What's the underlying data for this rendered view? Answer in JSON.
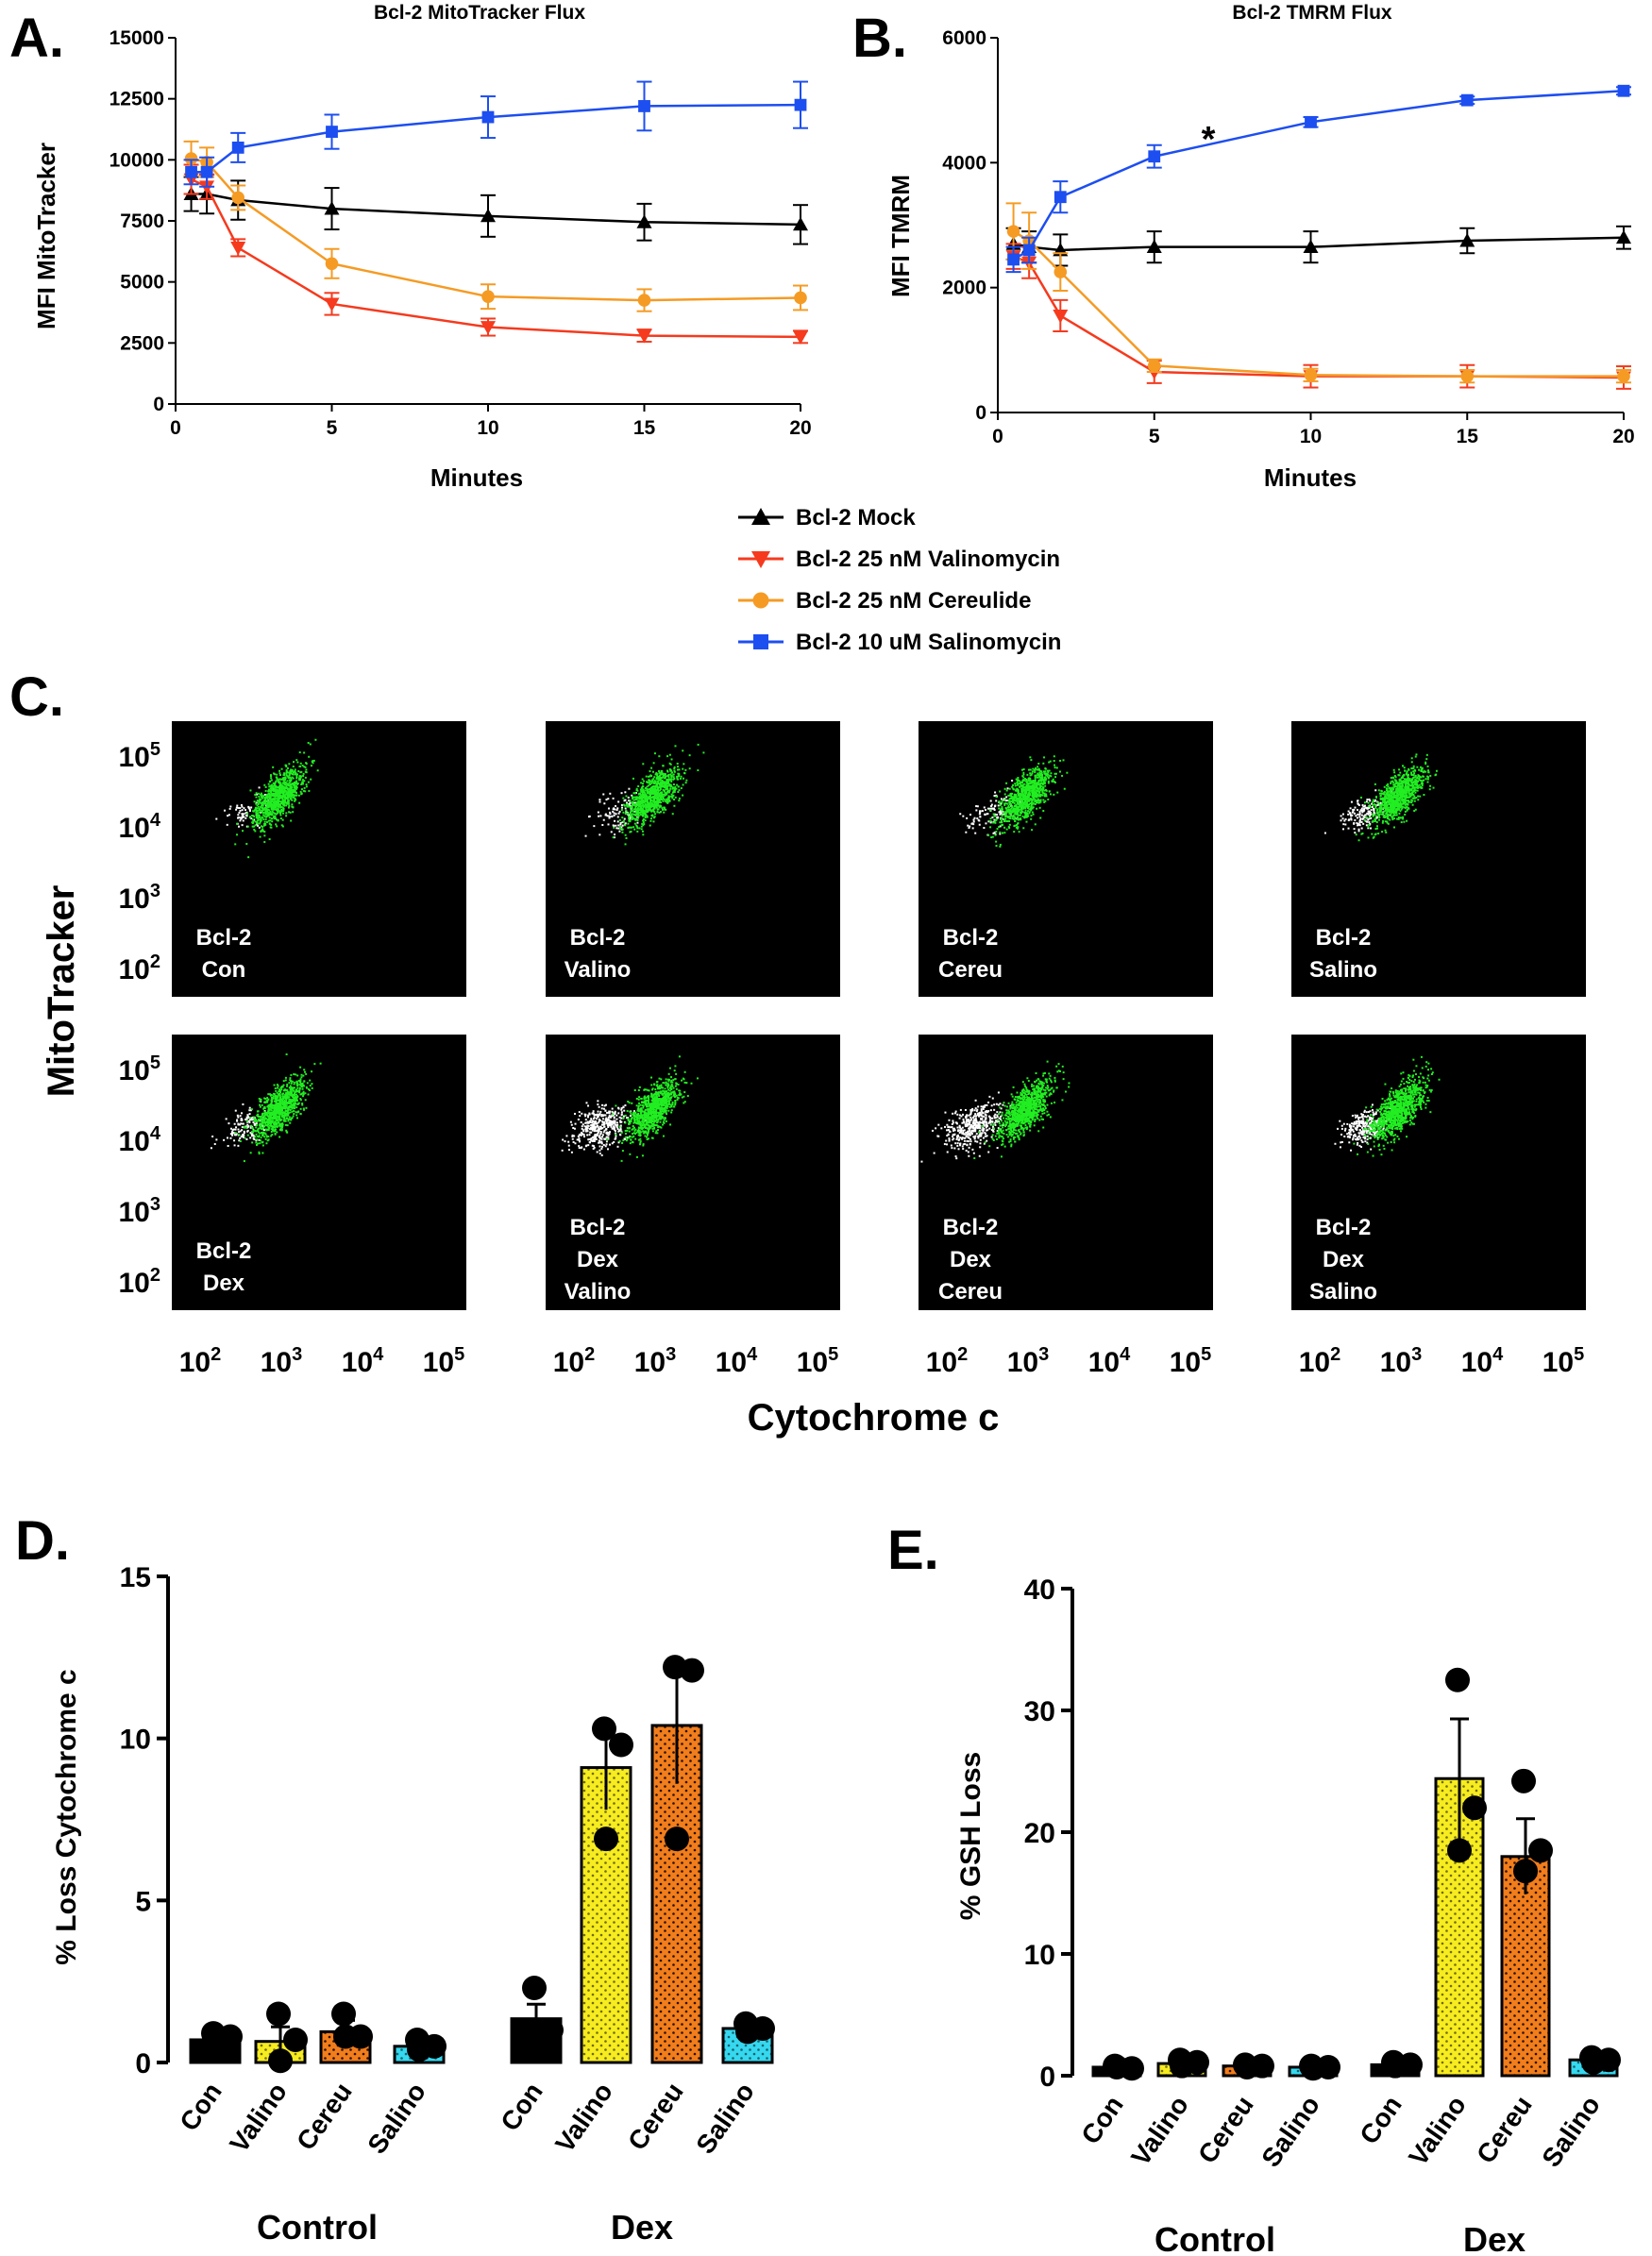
{
  "colors": {
    "mock": "#000000",
    "valinomycin": "#f53a1e",
    "cereulide": "#f59b24",
    "salinomycin": "#1d4ef0",
    "con_bar": "#000000",
    "valino_bar": "#f7ec20",
    "cereu_bar": "#f27d1c",
    "salino_bar": "#35d8ef",
    "flow_green": "#22ee22",
    "flow_white": "#ffffff"
  },
  "panel_labels": {
    "a": "A.",
    "b": "B.",
    "c": "C.",
    "d": "D.",
    "e": "E."
  },
  "legend": {
    "items": [
      {
        "label": "Bcl-2 Mock",
        "key": "mock",
        "marker": "triangle-up"
      },
      {
        "label": "Bcl-2 25 nM Valinomycin",
        "key": "valinomycin",
        "marker": "triangle-down"
      },
      {
        "label": "Bcl-2 25 nM Cereulide",
        "key": "cereulide",
        "marker": "circle"
      },
      {
        "label": "Bcl-2 10 uM Salinomycin",
        "key": "salinomycin",
        "marker": "square"
      }
    ]
  },
  "flow": {
    "ylabel": "MitoTracker",
    "xlabel": "Cytochrome c",
    "y_ticks": [
      {
        "base": "10",
        "exp": "5"
      },
      {
        "base": "10",
        "exp": "4"
      },
      {
        "base": "10",
        "exp": "3"
      },
      {
        "base": "10",
        "exp": "2"
      }
    ],
    "x_ticks": [
      {
        "base": "10",
        "exp": "2"
      },
      {
        "base": "10",
        "exp": "3"
      },
      {
        "base": "10",
        "exp": "4"
      },
      {
        "base": "10",
        "exp": "5"
      }
    ],
    "panels": [
      {
        "lines": [
          "Bcl-2",
          "Con"
        ],
        "white": 70,
        "spread": 0.8
      },
      {
        "lines": [
          "Bcl-2",
          "Valino"
        ],
        "white": 110,
        "spread": 0.9
      },
      {
        "lines": [
          "Bcl-2",
          "Cereu"
        ],
        "white": 110,
        "spread": 0.9
      },
      {
        "lines": [
          "Bcl-2",
          "Salino"
        ],
        "white": 160,
        "spread": 0.8
      },
      {
        "lines": [
          "Bcl-2",
          "Dex"
        ],
        "white": 140,
        "spread": 0.8
      },
      {
        "lines": [
          "Bcl-2",
          "Dex",
          "Valino"
        ],
        "white": 420,
        "spread": 1.0
      },
      {
        "lines": [
          "Bcl-2",
          "Dex",
          "Cereu"
        ],
        "white": 420,
        "spread": 1.0
      },
      {
        "lines": [
          "Bcl-2",
          "Dex",
          "Salino"
        ],
        "white": 260,
        "spread": 0.8
      }
    ]
  },
  "chart_data": [
    {
      "id": "A",
      "type": "line",
      "title": "Bcl-2 MitoTracker Flux",
      "xlabel": "Minutes",
      "ylabel": "MFI MitoTracker",
      "x_ticks": [
        0,
        5,
        10,
        15,
        20
      ],
      "y_ticks": [
        0,
        2500,
        5000,
        7500,
        10000,
        12500,
        15000
      ],
      "xlim": [
        0,
        20
      ],
      "ylim": [
        0,
        15000
      ],
      "x": [
        0.5,
        1,
        2,
        5,
        10,
        15,
        20
      ],
      "series": [
        {
          "name": "Bcl-2 Mock",
          "key": "mock",
          "marker": "triangle-up",
          "values": [
            8600,
            8600,
            8350,
            8000,
            7700,
            7450,
            7350
          ],
          "errors": [
            700,
            800,
            800,
            850,
            850,
            750,
            800
          ]
        },
        {
          "name": "Bcl-2 25 nM Valinomycin",
          "key": "valinomycin",
          "marker": "triangle-down",
          "values": [
            9200,
            8900,
            6400,
            4100,
            3150,
            2800,
            2750
          ],
          "errors": [
            600,
            500,
            350,
            450,
            350,
            250,
            250
          ]
        },
        {
          "name": "Bcl-2 25 nM Cereulide",
          "key": "cereulide",
          "marker": "circle",
          "values": [
            10050,
            9900,
            8450,
            5750,
            4400,
            4250,
            4350
          ],
          "errors": [
            700,
            600,
            500,
            600,
            500,
            450,
            500
          ]
        },
        {
          "name": "Bcl-2 10 uM Salinomycin",
          "key": "salinomycin",
          "marker": "square",
          "values": [
            9500,
            9500,
            10500,
            11150,
            11750,
            12200,
            12250
          ],
          "errors": [
            500,
            600,
            600,
            700,
            850,
            1000,
            950
          ]
        }
      ]
    },
    {
      "id": "B",
      "type": "line",
      "title": "Bcl-2 TMRM Flux",
      "xlabel": "Minutes",
      "ylabel": "MFI TMRM",
      "annotation": "*",
      "x_ticks": [
        0,
        5,
        10,
        15,
        20
      ],
      "y_ticks": [
        0,
        2000,
        4000,
        6000
      ],
      "xlim": [
        0,
        20
      ],
      "ylim": [
        0,
        6000
      ],
      "x": [
        0.5,
        1,
        2,
        5,
        10,
        15,
        20
      ],
      "series": [
        {
          "name": "Bcl-2 Mock",
          "key": "mock",
          "marker": "triangle-up",
          "values": [
            2700,
            2650,
            2600,
            2650,
            2650,
            2750,
            2800
          ],
          "errors": [
            250,
            250,
            250,
            250,
            250,
            200,
            180
          ]
        },
        {
          "name": "Bcl-2 25 nM Valinomycin",
          "key": "valinomycin",
          "marker": "triangle-down",
          "values": [
            2500,
            2400,
            1550,
            650,
            580,
            580,
            560
          ],
          "errors": [
            200,
            250,
            250,
            180,
            180,
            180,
            180
          ]
        },
        {
          "name": "Bcl-2 25 nM Cereulide",
          "key": "cereulide",
          "marker": "circle",
          "values": [
            2900,
            2750,
            2250,
            750,
            600,
            580,
            580
          ],
          "errors": [
            450,
            450,
            300,
            100,
            100,
            100,
            100
          ]
        },
        {
          "name": "Bcl-2 10 uM Salinomycin",
          "key": "salinomycin",
          "marker": "square",
          "values": [
            2450,
            2600,
            3450,
            4100,
            4650,
            5000,
            5150
          ],
          "errors": [
            200,
            200,
            250,
            180,
            80,
            60,
            60
          ]
        }
      ]
    },
    {
      "id": "D",
      "type": "bar",
      "ylabel": "% Loss Cytochrome c",
      "ylim": [
        0,
        15
      ],
      "y_ticks": [
        0,
        5,
        10,
        15
      ],
      "groups": [
        {
          "name": "Control",
          "bars": [
            {
              "label": "Con",
              "key": "con_bar",
              "value": 0.7,
              "error": 0.15,
              "points": [
                0.9,
                0.8,
                0.5
              ]
            },
            {
              "label": "Valino",
              "key": "valino_bar",
              "value": 0.65,
              "error": 0.45,
              "points": [
                1.5,
                0.7,
                0.05
              ]
            },
            {
              "label": "Cereu",
              "key": "cereu_bar",
              "value": 0.95,
              "error": 0.35,
              "points": [
                1.5,
                0.8,
                0.8
              ]
            },
            {
              "label": "Salino",
              "key": "salino_bar",
              "value": 0.5,
              "error": 0.1,
              "points": [
                0.7,
                0.5,
                0.4
              ]
            }
          ]
        },
        {
          "name": "Dex",
          "bars": [
            {
              "label": "Con",
              "key": "con_bar",
              "value": 1.35,
              "error": 0.45,
              "points": [
                2.3,
                1.0,
                0.9
              ]
            },
            {
              "label": "Valino",
              "key": "valino_bar",
              "value": 9.1,
              "error": 1.3,
              "points": [
                10.3,
                9.8,
                6.9
              ]
            },
            {
              "label": "Cereu",
              "key": "cereu_bar",
              "value": 10.4,
              "error": 1.8,
              "points": [
                12.2,
                12.1,
                6.9
              ]
            },
            {
              "label": "Salino",
              "key": "salino_bar",
              "value": 1.05,
              "error": 0.1,
              "points": [
                1.2,
                1.05,
                0.95
              ]
            }
          ]
        }
      ]
    },
    {
      "id": "E",
      "type": "bar",
      "ylabel": "% GSH Loss",
      "ylim": [
        0,
        40
      ],
      "y_ticks": [
        0,
        10,
        20,
        30,
        40
      ],
      "groups": [
        {
          "name": "Control",
          "bars": [
            {
              "label": "Con",
              "key": "con_bar",
              "value": 0.7,
              "error": 0.1,
              "points": [
                0.8,
                0.6,
                0.7
              ]
            },
            {
              "label": "Valino",
              "key": "valino_bar",
              "value": 1.0,
              "error": 0.2,
              "points": [
                1.3,
                1.1,
                0.8
              ]
            },
            {
              "label": "Cereu",
              "key": "cereu_bar",
              "value": 0.8,
              "error": 0.1,
              "points": [
                0.9,
                0.8,
                0.7
              ]
            },
            {
              "label": "Salino",
              "key": "salino_bar",
              "value": 0.7,
              "error": 0.1,
              "points": [
                0.8,
                0.7,
                0.6
              ]
            }
          ]
        },
        {
          "name": "Dex",
          "bars": [
            {
              "label": "Con",
              "key": "con_bar",
              "value": 0.9,
              "error": 0.15,
              "points": [
                1.1,
                0.9,
                0.8
              ]
            },
            {
              "label": "Valino",
              "key": "valino_bar",
              "value": 24.4,
              "error": 4.9,
              "points": [
                32.5,
                22.0,
                18.5
              ]
            },
            {
              "label": "Cereu",
              "key": "cereu_bar",
              "value": 18.0,
              "error": 3.1,
              "points": [
                24.2,
                18.5,
                16.8
              ]
            },
            {
              "label": "Salino",
              "key": "salino_bar",
              "value": 1.3,
              "error": 0.2,
              "points": [
                1.5,
                1.3,
                1.1
              ]
            }
          ]
        }
      ]
    }
  ]
}
